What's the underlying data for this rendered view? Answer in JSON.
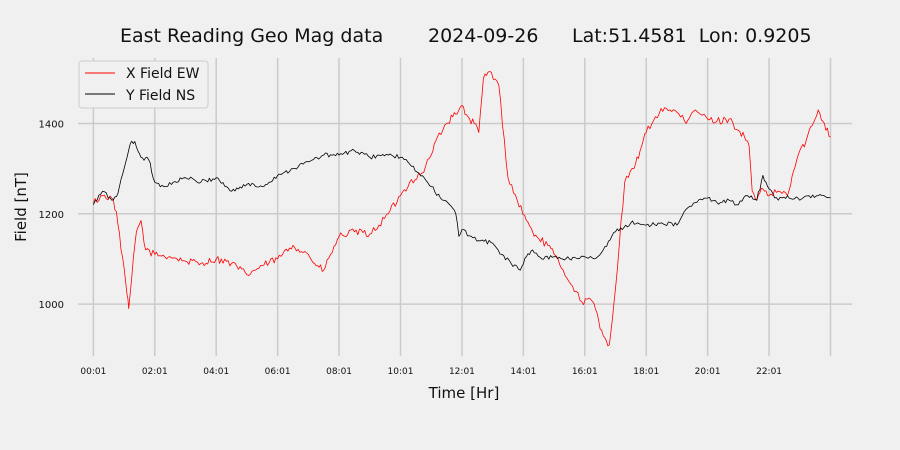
{
  "chart_data": {
    "type": "line",
    "title": {
      "main": "East Reading Geo Mag data",
      "date": "2024-09-26",
      "location": "Lat:51.4581  Lon: 0.9205"
    },
    "xlabel": "Time  [Hr]",
    "ylabel": "Field  [nT]",
    "x_tick_labels": [
      "00:01",
      "02:01",
      "04:01",
      "06:01",
      "08:01",
      "10:01",
      "12:01",
      "14:01",
      "16:01",
      "18:01",
      "20:01",
      "22:01"
    ],
    "x_tick_hours": [
      0,
      2,
      4,
      6,
      8,
      10,
      12,
      14,
      16,
      18,
      20,
      22
    ],
    "x_range_hours": [
      -0.5,
      24.7
    ],
    "ylim": [
      885,
      1545
    ],
    "y_ticks": [
      1000,
      1200,
      1400
    ],
    "grid": true,
    "legend_position": "upper-left",
    "x_unit": "hours",
    "series": [
      {
        "name": "X Field EW",
        "color": "#ff0000",
        "x": [
          0,
          0.3,
          0.6,
          0.75,
          0.9,
          1.0,
          1.1,
          1.15,
          1.25,
          1.4,
          1.55,
          1.7,
          2.0,
          2.5,
          3.0,
          3.5,
          4.0,
          4.5,
          5.0,
          5.5,
          6.0,
          6.5,
          7.0,
          7.25,
          7.5,
          8.0,
          8.5,
          9.0,
          9.3,
          9.6,
          10.0,
          10.3,
          10.7,
          11.0,
          11.2,
          11.5,
          11.7,
          11.9,
          12.0,
          12.1,
          12.25,
          12.4,
          12.55,
          12.7,
          12.9,
          13.2,
          13.5,
          13.8,
          14.1,
          14.3,
          14.5,
          14.8,
          15.0,
          15.3,
          15.6,
          15.9,
          16.2,
          16.4,
          16.5,
          16.6,
          16.8,
          17.0,
          17.3,
          17.6,
          17.8,
          18.0,
          18.3,
          18.6,
          19.0,
          19.3,
          19.6,
          20.0,
          20.3,
          20.7,
          21.0,
          21.2,
          21.35,
          21.45,
          21.6,
          21.8,
          22.0,
          22.3,
          22.6,
          22.8,
          23.0,
          23.2,
          23.4,
          23.6,
          23.8,
          24.0
        ],
        "values": [
          1225,
          1240,
          1235,
          1205,
          1120,
          1080,
          1020,
          990,
          1060,
          1160,
          1185,
          1120,
          1110,
          1105,
          1095,
          1090,
          1100,
          1090,
          1065,
          1085,
          1100,
          1130,
          1110,
          1085,
          1075,
          1150,
          1160,
          1155,
          1175,
          1200,
          1240,
          1270,
          1290,
          1330,
          1370,
          1400,
          1415,
          1430,
          1440,
          1420,
          1410,
          1400,
          1380,
          1500,
          1515,
          1485,
          1280,
          1230,
          1185,
          1160,
          1145,
          1130,
          1110,
          1075,
          1040,
          1005,
          1010,
          980,
          945,
          930,
          910,
          1035,
          1270,
          1300,
          1340,
          1380,
          1415,
          1435,
          1425,
          1400,
          1430,
          1410,
          1405,
          1410,
          1385,
          1370,
          1350,
          1250,
          1230,
          1255,
          1240,
          1250,
          1240,
          1295,
          1340,
          1360,
          1395,
          1430,
          1400,
          1370
        ]
      },
      {
        "name": "Y Field NS",
        "color": "#000000",
        "x": [
          0,
          0.3,
          0.6,
          0.8,
          1.0,
          1.2,
          1.35,
          1.55,
          1.8,
          2.0,
          2.3,
          2.6,
          3.0,
          3.5,
          4.0,
          4.5,
          5.0,
          5.5,
          6.0,
          6.5,
          7.0,
          7.5,
          8.0,
          8.5,
          9.0,
          9.3,
          9.6,
          10.0,
          10.3,
          10.6,
          11.0,
          11.3,
          11.6,
          11.8,
          11.9,
          12.0,
          12.3,
          12.6,
          13.0,
          13.3,
          13.6,
          13.9,
          14.1,
          14.3,
          14.6,
          15.0,
          15.5,
          16.0,
          16.3,
          16.6,
          17.0,
          17.5,
          18.0,
          18.5,
          19.0,
          19.3,
          19.6,
          20.0,
          20.3,
          20.7,
          21.0,
          21.3,
          21.6,
          21.8,
          22.0,
          22.3,
          22.6,
          23.0,
          23.3,
          23.6,
          24.0
        ],
        "values": [
          1220,
          1250,
          1230,
          1245,
          1300,
          1355,
          1360,
          1325,
          1320,
          1270,
          1260,
          1270,
          1280,
          1270,
          1280,
          1250,
          1265,
          1260,
          1285,
          1300,
          1315,
          1330,
          1330,
          1340,
          1325,
          1330,
          1330,
          1325,
          1310,
          1290,
          1260,
          1235,
          1220,
          1200,
          1150,
          1165,
          1150,
          1140,
          1135,
          1110,
          1090,
          1075,
          1105,
          1120,
          1100,
          1105,
          1100,
          1105,
          1100,
          1120,
          1160,
          1180,
          1175,
          1180,
          1175,
          1210,
          1225,
          1235,
          1225,
          1230,
          1220,
          1240,
          1230,
          1285,
          1255,
          1230,
          1240,
          1230,
          1240,
          1240,
          1235
        ]
      }
    ]
  }
}
